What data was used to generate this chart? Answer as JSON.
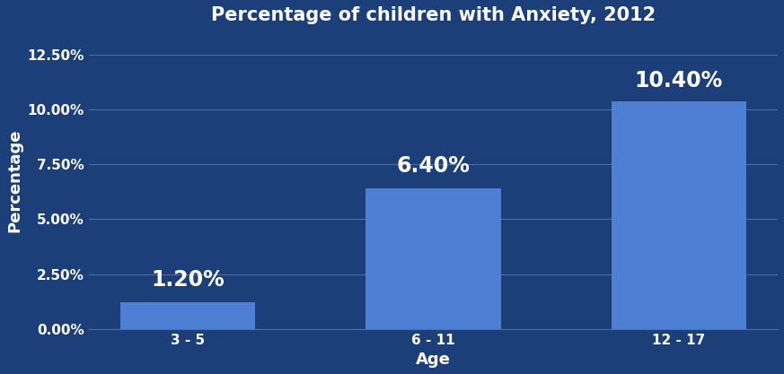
{
  "title": "Percentage of children with Anxiety, 2012",
  "categories": [
    "3 - 5",
    "6 - 11",
    "12 - 17"
  ],
  "values": [
    1.2,
    6.4,
    10.4
  ],
  "bar_color": "#4d7fd4",
  "background_color": "#1c3f7a",
  "text_color": "#ffffff",
  "ylabel": "Percentage",
  "xlabel": "Age",
  "ylim": [
    0,
    13.5
  ],
  "yticks": [
    0,
    2.5,
    5.0,
    7.5,
    10.0,
    12.5
  ],
  "grid_color": "#4a6fa5",
  "title_fontsize": 15,
  "label_fontsize": 13,
  "tick_fontsize": 11,
  "annotation_fontsize": 17,
  "bar_width": 0.55,
  "annotation_offsets": [
    0.55,
    0.55,
    0.45
  ]
}
